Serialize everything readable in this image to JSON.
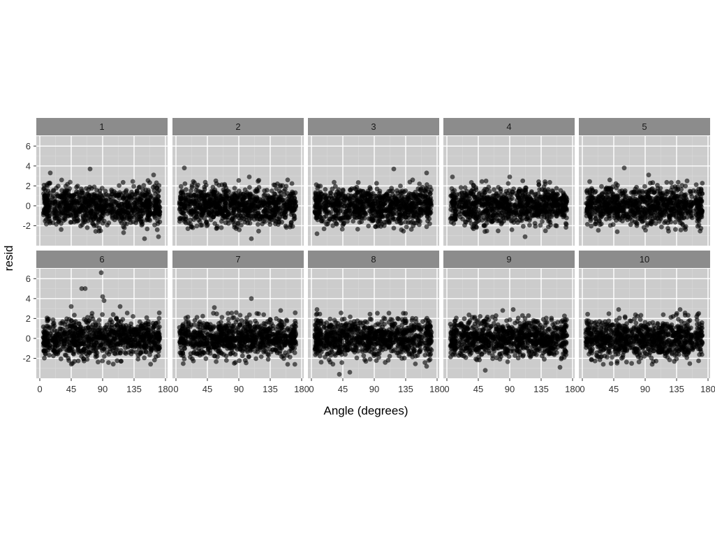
{
  "chart_data": {
    "type": "scatter",
    "layout": "faceted 2x5",
    "xlabel": "Angle (degrees)",
    "ylabel": "resid",
    "xlim": [
      -5,
      183
    ],
    "ylim": [
      -4,
      7
    ],
    "x_ticks": [
      0,
      45,
      90,
      135,
      180
    ],
    "y_ticks": [
      -2,
      0,
      2,
      4,
      6
    ],
    "x_tick_labels": [
      "0",
      "45",
      "90",
      "135",
      "180"
    ],
    "y_tick_labels": [
      "-2",
      "0",
      "2",
      "4",
      "6"
    ],
    "grid": true,
    "point_color": "#000000",
    "point_alpha": 0.6,
    "panel_background": "#cccccc",
    "strip_background": "#8c8c8c",
    "points_per_panel": 900,
    "x_range_of_points": [
      5,
      172
    ],
    "bulk_band": [
      -2,
      2
    ],
    "panels": [
      {
        "label": "1",
        "outliers": [
          [
            15,
            3.3
          ],
          [
            72,
            3.7
          ],
          [
            163,
            3.1
          ],
          [
            150,
            -3.3
          ],
          [
            170,
            -3.1
          ],
          [
            120,
            -2.7
          ]
        ]
      },
      {
        "label": "2",
        "outliers": [
          [
            12,
            3.8
          ],
          [
            105,
            2.9
          ],
          [
            108,
            -3.3
          ],
          [
            160,
            2.6
          ]
        ]
      },
      {
        "label": "3",
        "outliers": [
          [
            118,
            3.7
          ],
          [
            165,
            3.3
          ],
          [
            8,
            -2.8
          ],
          [
            145,
            2.6
          ]
        ]
      },
      {
        "label": "4",
        "outliers": [
          [
            8,
            2.9
          ],
          [
            112,
            -3.1
          ],
          [
            90,
            2.9
          ]
        ]
      },
      {
        "label": "5",
        "outliers": [
          [
            60,
            3.8
          ],
          [
            95,
            3.1
          ],
          [
            50,
            -2.6
          ],
          [
            150,
            2.5
          ]
        ]
      },
      {
        "label": "6",
        "outliers": [
          [
            88,
            6.6
          ],
          [
            60,
            5.0
          ],
          [
            65,
            5.0
          ],
          [
            90,
            4.2
          ],
          [
            92,
            3.8
          ],
          [
            115,
            3.2
          ],
          [
            45,
            3.2
          ]
        ]
      },
      {
        "label": "7",
        "outliers": [
          [
            108,
            4.0
          ],
          [
            55,
            3.1
          ],
          [
            150,
            2.8
          ],
          [
            160,
            -2.6
          ]
        ]
      },
      {
        "label": "8",
        "outliers": [
          [
            40,
            -3.6
          ],
          [
            55,
            -3.4
          ],
          [
            8,
            2.9
          ],
          [
            165,
            -2.8
          ]
        ]
      },
      {
        "label": "9",
        "outliers": [
          [
            95,
            2.9
          ],
          [
            55,
            -3.2
          ],
          [
            80,
            2.8
          ],
          [
            162,
            -2.9
          ]
        ]
      },
      {
        "label": "10",
        "outliers": [
          [
            52,
            2.9
          ],
          [
            140,
            2.9
          ],
          [
            100,
            -2.6
          ],
          [
            30,
            -2.6
          ]
        ]
      }
    ]
  }
}
